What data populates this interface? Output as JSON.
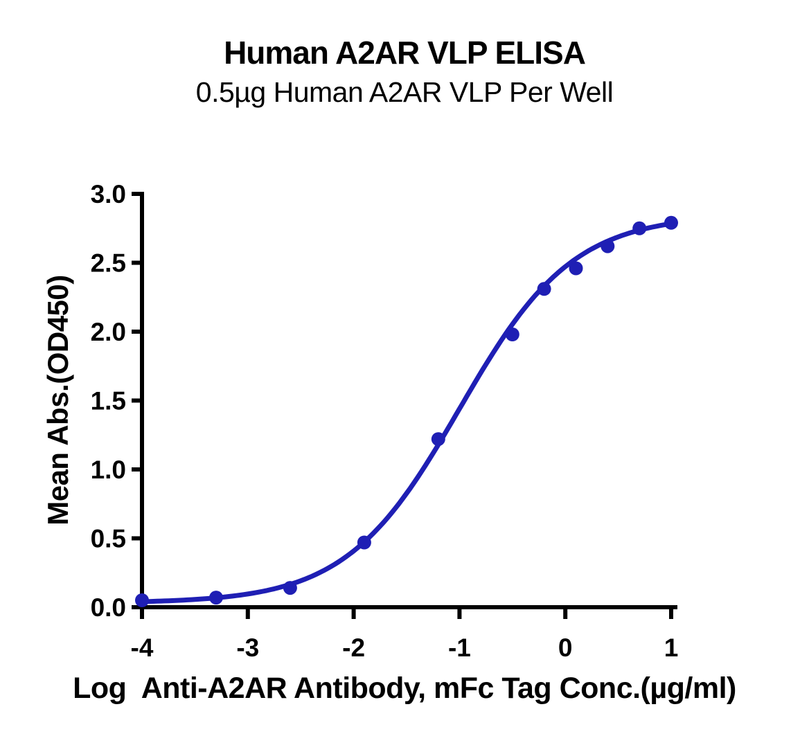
{
  "page": {
    "background": "#ffffff"
  },
  "chart_data": {
    "type": "scatter",
    "title": "Human A2AR VLP ELISA",
    "subtitle": "0.5µg Human A2AR VLP Per Well",
    "xlabel": "Log  Anti-A2AR Antibody, mFc Tag Conc.(µg/ml)",
    "ylabel": "Mean Abs.(OD450)",
    "series": [
      {
        "name": "Anti-A2AR Antibody, mFc Tag",
        "color": "#1F1FB4",
        "x": [
          -4.0,
          -3.3,
          -2.6,
          -1.9,
          -1.2,
          -0.5,
          -0.2,
          0.1,
          0.4,
          0.7,
          1.0
        ],
        "y": [
          0.05,
          0.07,
          0.14,
          0.47,
          1.22,
          1.98,
          2.31,
          2.46,
          2.62,
          2.75,
          2.79
        ]
      }
    ],
    "curve_fit": {
      "model": "4PL",
      "bottom": 0.03,
      "top": 2.85,
      "logEC50": -1.0,
      "hillslope": 0.81
    },
    "xlim": [
      -4,
      1
    ],
    "ylim": [
      0,
      3
    ],
    "x_ticks": [
      "-4",
      "-3",
      "-2",
      "-1",
      "0",
      "1"
    ],
    "y_ticks": [
      "0.0",
      "0.5",
      "1.0",
      "1.5",
      "2.0",
      "2.5",
      "3.0"
    ],
    "grid": false,
    "legend": "none",
    "axis_color": "#000000",
    "marker_radius": 10,
    "curve_width": 7
  }
}
